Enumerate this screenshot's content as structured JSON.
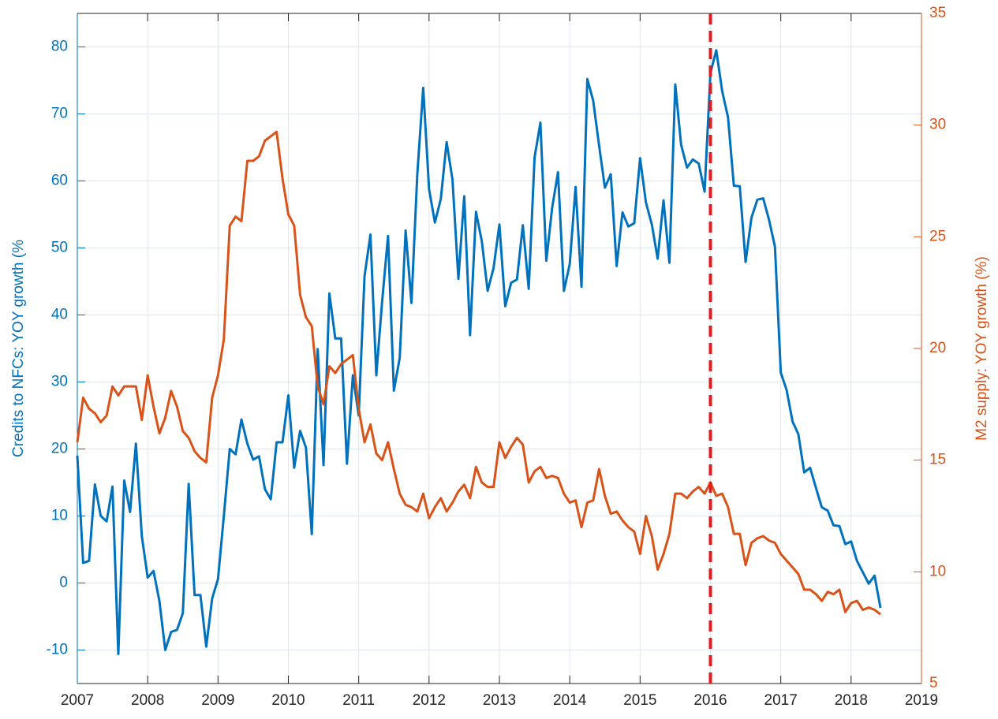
{
  "chart_data": {
    "type": "line",
    "y_label": "Credits to NFCs: YOY growth (%",
    "y2_label": "M2 supply: YOY growth (%)",
    "xlim": [
      2007,
      2019
    ],
    "xticks": [
      2007,
      2008,
      2009,
      2010,
      2011,
      2012,
      2013,
      2014,
      2015,
      2016,
      2017,
      2018,
      2019
    ],
    "ylim": [
      -15,
      85
    ],
    "yticks": [
      -10,
      0,
      10,
      20,
      30,
      40,
      50,
      60,
      70,
      80
    ],
    "y2lim": [
      5,
      35
    ],
    "y2ticks": [
      5,
      10,
      15,
      20,
      25,
      30,
      35
    ],
    "grid": true,
    "vline": {
      "x": 2016,
      "color": "#e41a1c"
    },
    "x": [
      2007,
      2007.083,
      2007.167,
      2007.25,
      2007.333,
      2007.417,
      2007.5,
      2007.583,
      2007.667,
      2007.75,
      2007.833,
      2007.917,
      2008,
      2008.083,
      2008.167,
      2008.25,
      2008.333,
      2008.417,
      2008.5,
      2008.583,
      2008.667,
      2008.75,
      2008.833,
      2008.917,
      2009,
      2009.083,
      2009.167,
      2009.25,
      2009.333,
      2009.417,
      2009.5,
      2009.583,
      2009.667,
      2009.75,
      2009.833,
      2009.917,
      2010,
      2010.083,
      2010.167,
      2010.25,
      2010.333,
      2010.417,
      2010.5,
      2010.583,
      2010.667,
      2010.75,
      2010.833,
      2010.917,
      2011,
      2011.083,
      2011.167,
      2011.25,
      2011.333,
      2011.417,
      2011.5,
      2011.583,
      2011.667,
      2011.75,
      2011.833,
      2011.917,
      2012,
      2012.083,
      2012.167,
      2012.25,
      2012.333,
      2012.417,
      2012.5,
      2012.583,
      2012.667,
      2012.75,
      2012.833,
      2012.917,
      2013,
      2013.083,
      2013.167,
      2013.25,
      2013.333,
      2013.417,
      2013.5,
      2013.583,
      2013.667,
      2013.75,
      2013.833,
      2013.917,
      2014,
      2014.083,
      2014.167,
      2014.25,
      2014.333,
      2014.417,
      2014.5,
      2014.583,
      2014.667,
      2014.75,
      2014.833,
      2014.917,
      2015,
      2015.083,
      2015.167,
      2015.25,
      2015.333,
      2015.417,
      2015.5,
      2015.583,
      2015.667,
      2015.75,
      2015.833,
      2015.917,
      2016,
      2016.083,
      2016.167,
      2016.25,
      2016.333,
      2016.417,
      2016.5,
      2016.583,
      2016.667,
      2016.75,
      2016.833,
      2016.917,
      2017,
      2017.083,
      2017.167,
      2017.25,
      2017.333,
      2017.417,
      2017.5,
      2017.583,
      2017.667,
      2017.75,
      2017.833,
      2017.917,
      2018,
      2018.083,
      2018.167,
      2018.25,
      2018.333,
      2018.417
    ],
    "series": [
      {
        "color": "#0072bd",
        "axis": "y",
        "values": [
          19,
          3,
          3.3,
          14.7,
          10,
          9.2,
          14.4,
          -10.6,
          15.3,
          10.6,
          20.8,
          7,
          0.8,
          1.8,
          -2.7,
          -10,
          -7.3,
          -7,
          -4.5,
          14.8,
          -1.8,
          -1.8,
          -9.5,
          -2.3,
          0.6,
          10,
          20,
          19.2,
          24.4,
          20.8,
          18.4,
          18.9,
          14,
          12.5,
          21,
          21,
          28,
          17.2,
          22.7,
          20.2,
          7.3,
          34.9,
          17.6,
          43.2,
          36.5,
          36.5,
          17.8,
          31,
          25,
          45.8,
          52,
          31,
          42,
          51.8,
          28.7,
          33.6,
          52.6,
          41.8,
          61,
          73.9,
          58.8,
          53.8,
          57.3,
          65.8,
          60.2,
          45.4,
          57.7,
          37,
          55.4,
          51,
          43.6,
          47,
          53.5,
          41.3,
          44.8,
          45.3,
          53.4,
          43.9,
          63.5,
          68.7,
          48.1,
          56,
          61.3,
          43.6,
          47.6,
          59.1,
          44.2,
          75.2,
          72,
          65.3,
          59,
          61,
          47.3,
          55.3,
          53.2,
          53.7,
          63.4,
          56.8,
          53.5,
          48.4,
          57.1,
          47.8,
          74.4,
          65.4,
          62,
          63.2,
          62.6,
          58.4,
          76.1,
          79.5,
          73.4,
          69.5,
          59.3,
          59.2,
          47.9,
          54.5,
          57.2,
          57.4,
          54.2,
          50.2,
          31.4,
          28.8,
          24.1,
          22.2,
          16.5,
          17.2,
          14.2,
          11.3,
          10.8,
          8.6,
          8.5,
          5.8,
          6.2,
          3.3,
          1.6,
          -0.1,
          1.1,
          -3.7
        ]
      },
      {
        "color": "#d95319",
        "axis": "y2",
        "values": [
          15.8,
          17.8,
          17.3,
          17.1,
          16.7,
          17,
          18.3,
          17.9,
          18.3,
          18.3,
          18.3,
          16.8,
          18.8,
          17.4,
          16.2,
          16.9,
          18.1,
          17.4,
          16.3,
          16,
          15.4,
          15.1,
          14.9,
          17.8,
          18.8,
          20.4,
          25.5,
          25.9,
          25.7,
          28.4,
          28.4,
          28.6,
          29.3,
          29.5,
          29.7,
          27.6,
          26,
          25.5,
          22.4,
          21.4,
          21,
          18.3,
          17.5,
          19.2,
          18.9,
          19.3,
          19.5,
          19.7,
          17.3,
          15.8,
          16.6,
          15.3,
          15,
          15.8,
          14.6,
          13.5,
          13,
          12.9,
          12.7,
          13.5,
          12.4,
          12.9,
          13.3,
          12.7,
          13.1,
          13.6,
          13.9,
          13.3,
          14.7,
          14,
          13.8,
          13.8,
          15.8,
          15.1,
          15.6,
          16,
          15.7,
          14,
          14.5,
          14.7,
          14.2,
          14.3,
          14.2,
          13.5,
          13.1,
          13.2,
          12,
          13.1,
          13.2,
          14.6,
          13.4,
          12.6,
          12.7,
          12.3,
          12,
          11.8,
          10.8,
          12.5,
          11.6,
          10.1,
          10.8,
          11.7,
          13.5,
          13.5,
          13.3,
          13.6,
          13.8,
          13.5,
          14,
          13.4,
          13.5,
          12.9,
          11.7,
          11.7,
          10.3,
          11.3,
          11.5,
          11.6,
          11.4,
          11.3,
          10.8,
          10.5,
          10.2,
          9.9,
          9.2,
          9.2,
          9,
          8.7,
          9.1,
          9,
          9.2,
          8.2,
          8.6,
          8.7,
          8.3,
          8.4,
          8.3,
          8.1
        ]
      }
    ]
  }
}
